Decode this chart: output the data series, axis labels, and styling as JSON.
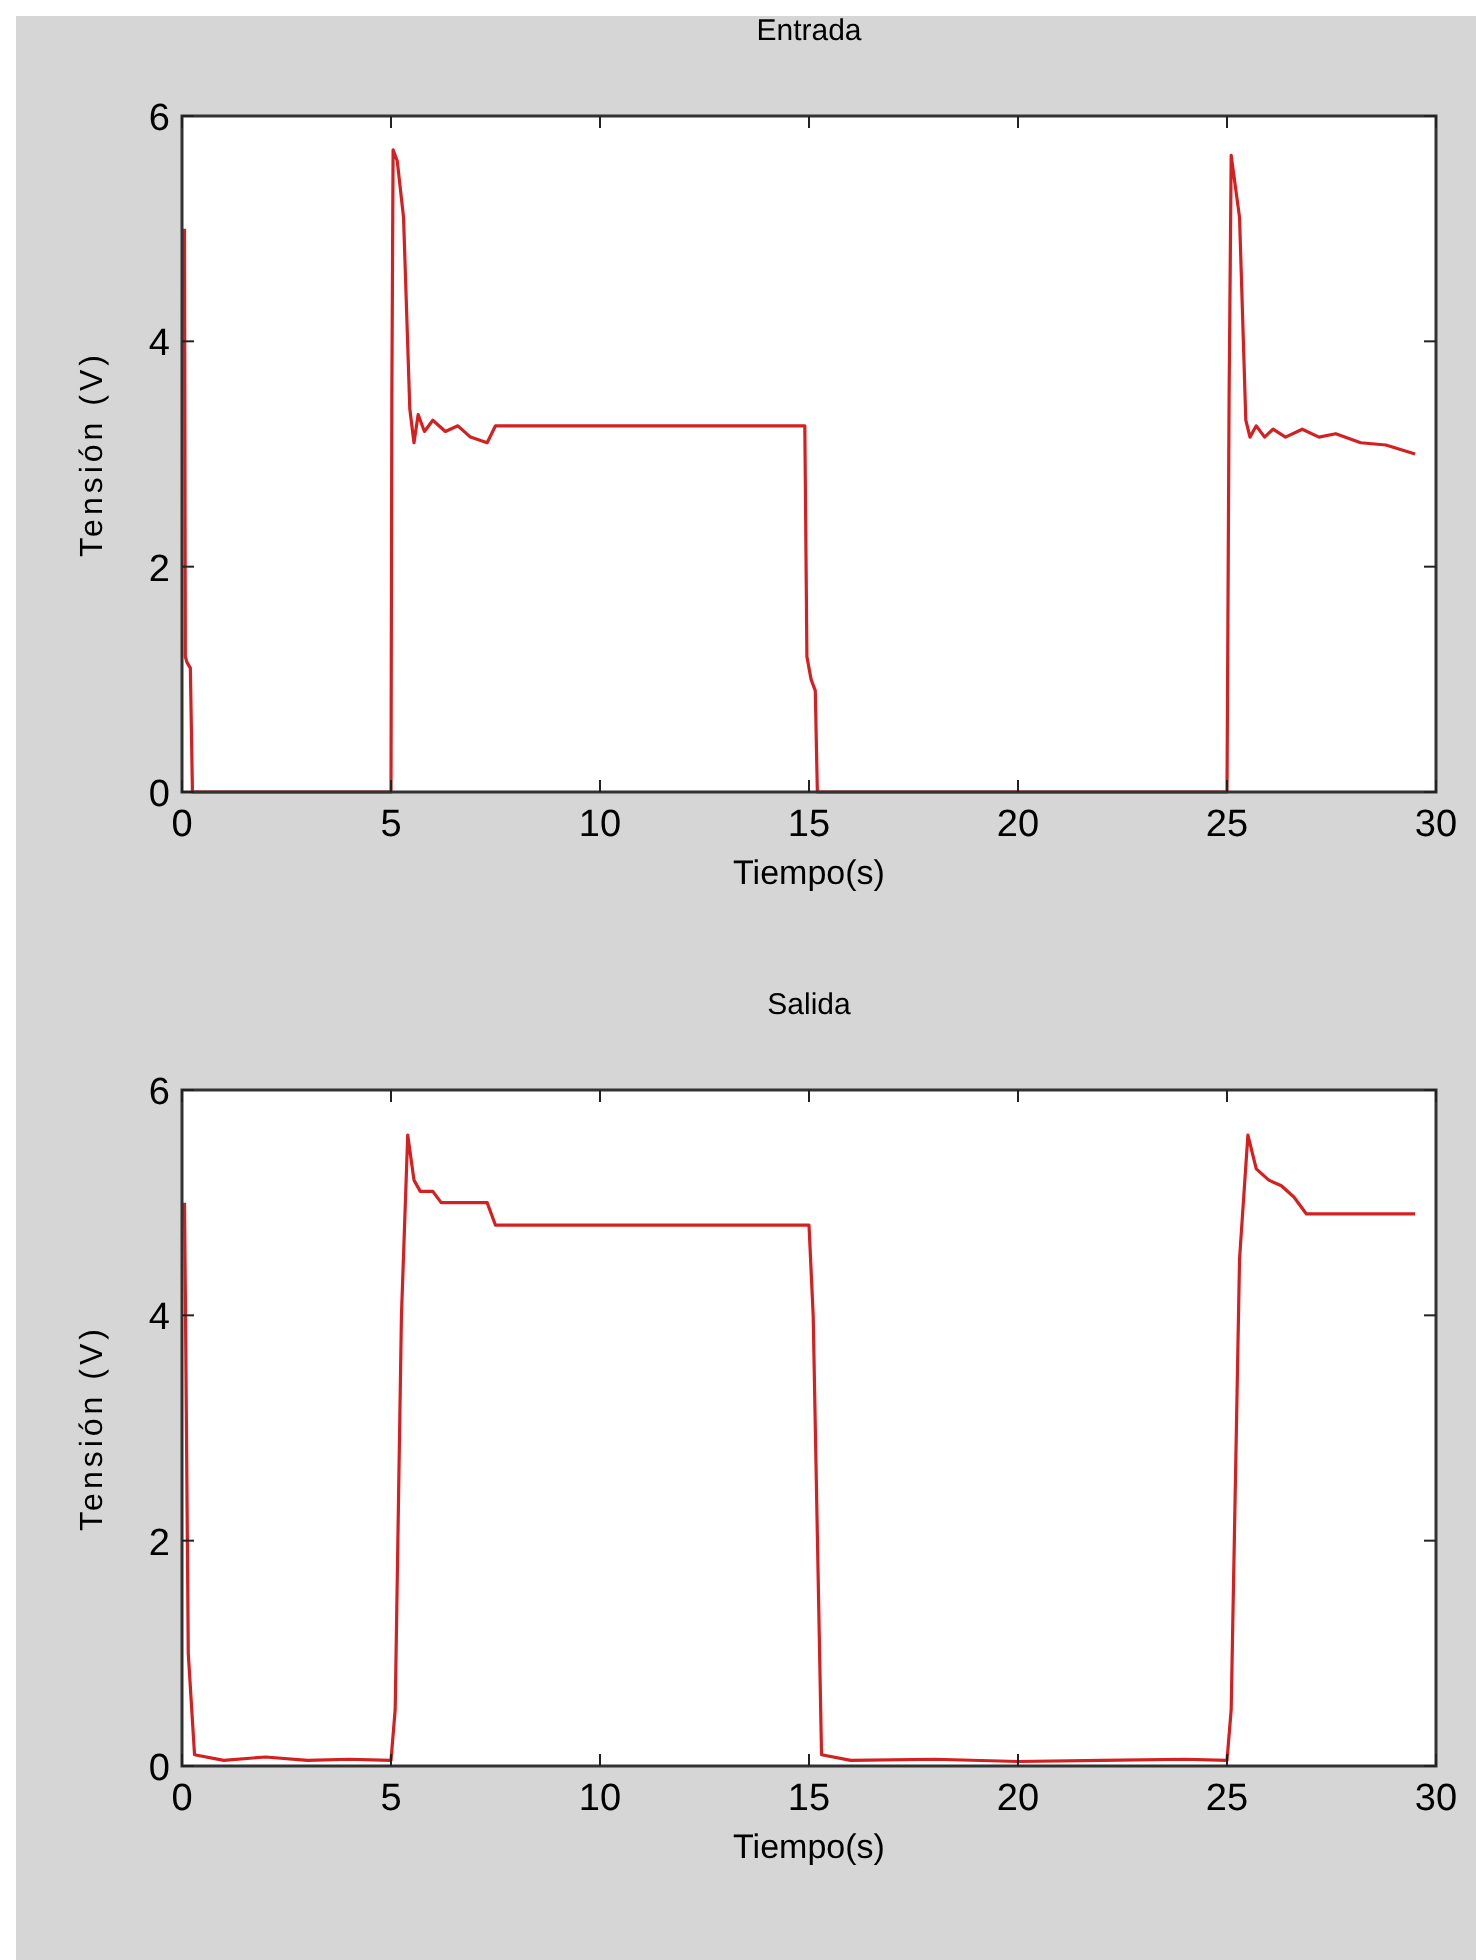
{
  "chart_data": [
    {
      "type": "line",
      "title": "Entrada",
      "xlabel": "Tiempo(s)",
      "ylabel": "Tensión (V)",
      "xlim": [
        0,
        30
      ],
      "ylim": [
        0,
        6
      ],
      "xticks": [
        0,
        5,
        10,
        15,
        20,
        25,
        30
      ],
      "yticks": [
        0,
        2,
        4,
        6
      ],
      "grid": false,
      "series": [
        {
          "color": "#d42020",
          "x": [
            0.06,
            0.08,
            0.12,
            0.2,
            0.25,
            5.0,
            5.02,
            5.05,
            5.15,
            5.3,
            5.45,
            5.55,
            5.65,
            5.8,
            6.0,
            6.3,
            6.6,
            6.9,
            7.3,
            7.5,
            10,
            14.9,
            14.95,
            15.05,
            15.15,
            15.2,
            25.0,
            25.05,
            25.1,
            25.3,
            25.45,
            25.55,
            25.7,
            25.9,
            26.1,
            26.4,
            26.8,
            27.2,
            27.6,
            28.2,
            28.8,
            29.5
          ],
          "values": [
            5.0,
            1.2,
            1.15,
            1.1,
            0,
            0,
            3.5,
            5.7,
            5.6,
            5.1,
            3.4,
            3.1,
            3.35,
            3.2,
            3.3,
            3.2,
            3.25,
            3.15,
            3.1,
            3.25,
            3.25,
            3.25,
            1.2,
            1.0,
            0.9,
            0,
            0,
            3.5,
            5.65,
            5.1,
            3.3,
            3.15,
            3.25,
            3.15,
            3.22,
            3.15,
            3.22,
            3.15,
            3.18,
            3.1,
            3.08,
            3.0
          ]
        }
      ]
    },
    {
      "type": "line",
      "title": "Salida",
      "xlabel": "Tiempo(s)",
      "ylabel": "Tensión (V)",
      "xlim": [
        0,
        30
      ],
      "ylim": [
        0,
        6
      ],
      "xticks": [
        0,
        5,
        10,
        15,
        20,
        25,
        30
      ],
      "yticks": [
        0,
        2,
        4,
        6
      ],
      "grid": false,
      "series": [
        {
          "color": "#d42020",
          "x": [
            0.06,
            0.08,
            0.15,
            0.3,
            1.0,
            2.0,
            3.0,
            4.0,
            5.0,
            5.1,
            5.25,
            5.4,
            5.55,
            5.7,
            6.0,
            6.2,
            7.3,
            7.5,
            10,
            12,
            15.0,
            15.1,
            15.3,
            16,
            18,
            20,
            22,
            24,
            25.0,
            25.1,
            25.3,
            25.5,
            25.7,
            26.0,
            26.3,
            26.6,
            26.9,
            28,
            29.5
          ],
          "values": [
            5.0,
            4.2,
            1.0,
            0.1,
            0.05,
            0.08,
            0.05,
            0.06,
            0.05,
            0.5,
            4.0,
            5.6,
            5.2,
            5.1,
            5.1,
            5.0,
            5.0,
            4.8,
            4.8,
            4.8,
            4.8,
            4.0,
            0.1,
            0.05,
            0.06,
            0.04,
            0.05,
            0.06,
            0.05,
            0.5,
            4.5,
            5.6,
            5.3,
            5.2,
            5.15,
            5.05,
            4.9,
            4.9,
            4.9
          ]
        }
      ]
    }
  ]
}
